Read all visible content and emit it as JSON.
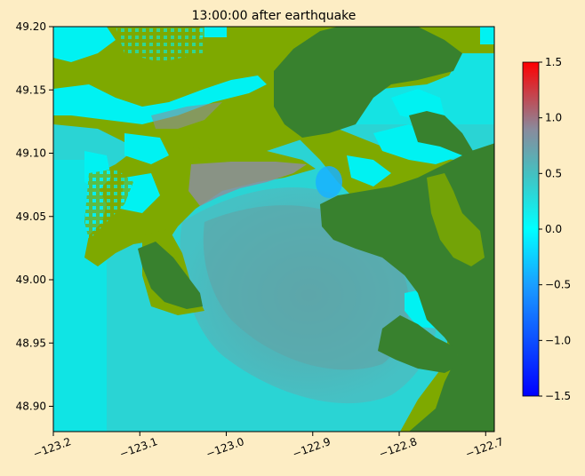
{
  "title": "13:00:00 after earthquake",
  "colors": {
    "background": "#fdedc4",
    "land_dark": "#38812e",
    "land_light": "#7ea900",
    "water_cyan": "#00f2f2",
    "water_shallow": "#2ad4d4",
    "water_mid": "#45c1c4",
    "water_gray": "#5ca9ac",
    "surge_gray": "#8b8f9c",
    "trough_blue": "#19b2ff"
  },
  "chart_data": {
    "type": "heatmap",
    "xlim": [
      -123.2,
      -122.69
    ],
    "ylim": [
      48.88,
      49.2
    ],
    "xticks": [
      {
        "value": -123.2,
        "label": "−123.2"
      },
      {
        "value": -123.1,
        "label": "−123.1"
      },
      {
        "value": -123.0,
        "label": "−123.0"
      },
      {
        "value": -122.9,
        "label": "−122.9"
      },
      {
        "value": -122.8,
        "label": "−122.8"
      },
      {
        "value": -122.7,
        "label": "−122.7"
      }
    ],
    "yticks": [
      {
        "value": 49.2,
        "label": "49.20"
      },
      {
        "value": 49.15,
        "label": "49.15"
      },
      {
        "value": 49.1,
        "label": "49.10"
      },
      {
        "value": 49.05,
        "label": "49.05"
      },
      {
        "value": 49.0,
        "label": "49.00"
      },
      {
        "value": 48.95,
        "label": "48.95"
      },
      {
        "value": 48.9,
        "label": "48.90"
      }
    ],
    "colorbar": {
      "vmin": -1.5,
      "vmax": 1.5,
      "ticks": [
        {
          "value": 1.5,
          "label": "1.5"
        },
        {
          "value": 1.0,
          "label": "1.0"
        },
        {
          "value": 0.5,
          "label": "0.5"
        },
        {
          "value": 0.0,
          "label": "0.0"
        },
        {
          "value": -0.5,
          "label": "−0.5"
        },
        {
          "value": -1.0,
          "label": "−1.0"
        },
        {
          "value": -1.5,
          "label": "−1.5"
        }
      ],
      "stops": [
        {
          "value": -1.5,
          "color": "#0000ff"
        },
        {
          "value": -0.5,
          "color": "#1a9eff"
        },
        {
          "value": 0.0,
          "color": "#00ffff"
        },
        {
          "value": 0.5,
          "color": "#45c0c0"
        },
        {
          "value": 0.9,
          "color": "#8a8a9c"
        },
        {
          "value": 1.5,
          "color": "#ff0000"
        }
      ]
    }
  }
}
